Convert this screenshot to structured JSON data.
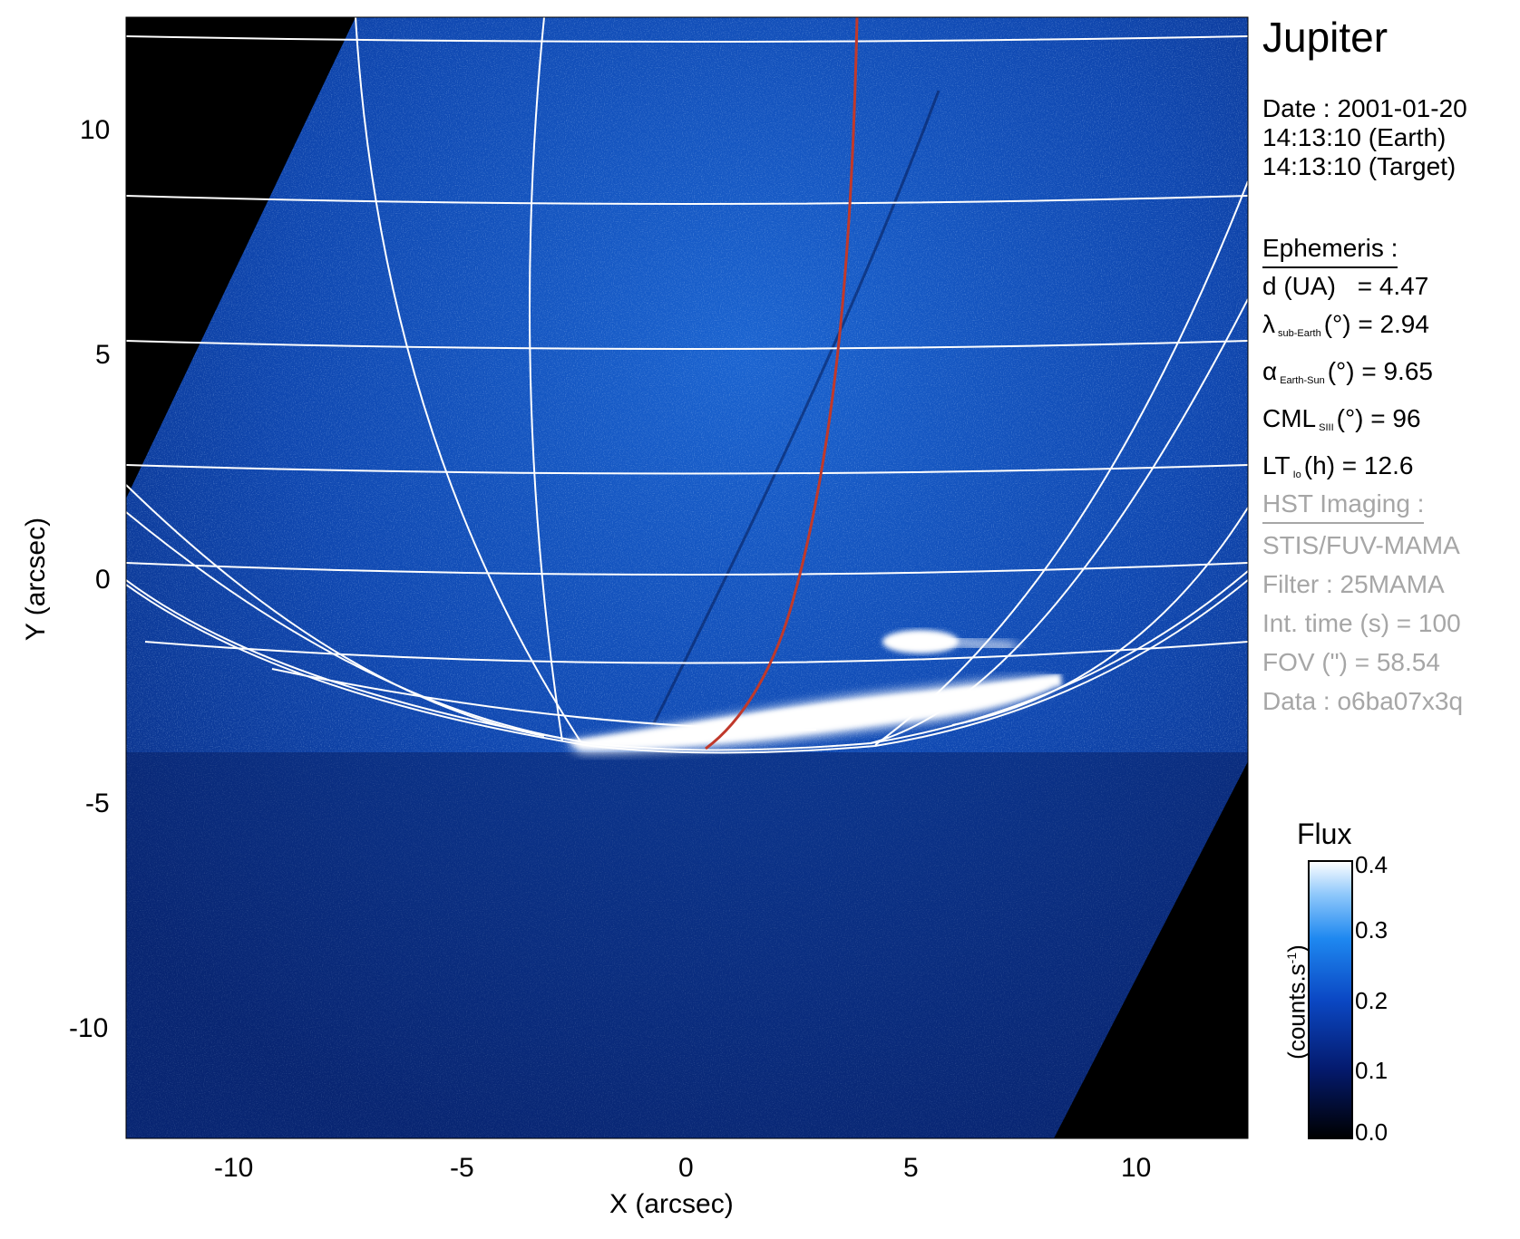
{
  "title": "Jupiter",
  "date": {
    "line1": "Date : 2001-01-20",
    "line2": "14:13:10 (Earth)",
    "line3": "14:13:10 (Target)"
  },
  "ephemeris": {
    "header": "Ephemeris :",
    "d": {
      "label": "d (UA)",
      "value": "= 4.47"
    },
    "lambda": {
      "symbol": "λ",
      "sub": "sub-Earth",
      "rest": "(°) = 2.94"
    },
    "alpha": {
      "symbol": "α",
      "sub": "Earth-Sun",
      "rest": "(°) = 9.65"
    },
    "cml": {
      "symbol": "CML",
      "sub": "SIII",
      "rest": "(°) = 96"
    },
    "lt": {
      "symbol": "LT",
      "sub": "Io",
      "rest": "(h) = 12.6"
    }
  },
  "hst": {
    "header": "HST Imaging :",
    "lines": [
      "STIS/FUV-MAMA",
      "Filter : 25MAMA",
      "Int. time (s) = 100",
      "FOV (\") = 58.54",
      "Data : o6ba07x3q"
    ]
  },
  "axes": {
    "xlabel": "X (arcsec)",
    "ylabel": "Y (arcsec)",
    "xticks": [
      "-10",
      "-5",
      "0",
      "5",
      "10"
    ],
    "yticks": [
      "10",
      "5",
      "0",
      "-5",
      "-10"
    ],
    "xlim": [
      -12.5,
      12.5
    ],
    "ylim": [
      -12.5,
      12.5
    ]
  },
  "colorbar": {
    "title": "Flux",
    "unit": "(counts.s",
    "unit_sup": "-1",
    "unit_close": ")",
    "ticks": [
      "0.4",
      "0.3",
      "0.2",
      "0.1",
      "0.0"
    ],
    "range": [
      0.0,
      0.4
    ]
  },
  "colors": {
    "grid": "#ffffff",
    "io_footpath": "#c0392b",
    "sky": "#000000",
    "low_flux": "#0a1f7a",
    "high_flux": "#ffffff",
    "secondary_text": "#a6a6a6"
  }
}
